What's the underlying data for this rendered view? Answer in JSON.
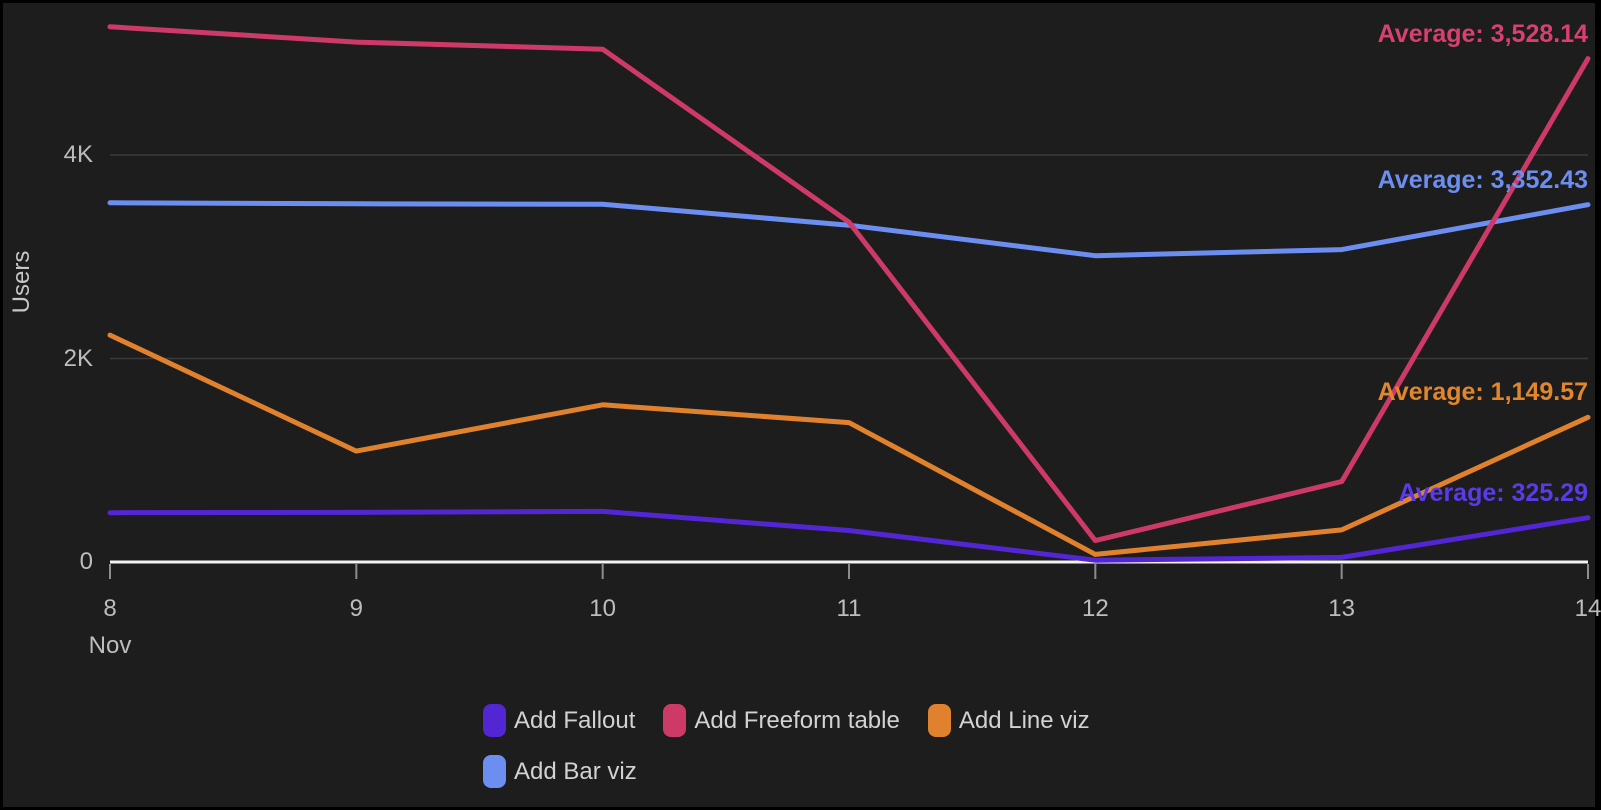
{
  "chart_data": {
    "type": "line",
    "ylabel": "Users",
    "month": "Nov",
    "x": [
      8,
      9,
      10,
      11,
      12,
      13,
      14
    ],
    "x_tick_labels": [
      "8",
      "9",
      "10",
      "11",
      "12",
      "13",
      "14"
    ],
    "y_ticks": [
      {
        "value": 0,
        "label": "0"
      },
      {
        "value": 2000,
        "label": "2K"
      },
      {
        "value": 4000,
        "label": "4K"
      }
    ],
    "ylim": [
      0,
      5525
    ],
    "grid": "horizontal-only",
    "legend_position": "bottom",
    "background_color": "#1d1d1d",
    "axis_color": "#f2f2f2",
    "gridline_color": "#3b3b3b",
    "tick_color": "#8d8d8d",
    "axis_label_color": "#bdbdbd",
    "legend_text_color": "#d2d2d2",
    "series": [
      {
        "name": "Add Fallout",
        "color": "#5226d2",
        "average_color": "#5b3aea",
        "values": [
          485,
          487,
          497,
          310,
          18,
          45,
          435
        ],
        "average": 325.29,
        "average_label": "Average: 325.29"
      },
      {
        "name": "Add Freeform table",
        "color": "#ce3a67",
        "average_color": "#d8406f",
        "values": [
          5260,
          5110,
          5040,
          3340,
          210,
          790,
          4947
        ],
        "average": 3528.14,
        "average_label": "Average: 3,528.14"
      },
      {
        "name": "Add Line viz",
        "color": "#e0812e",
        "average_color": "#e0872e",
        "values": [
          2230,
          1090,
          1545,
          1370,
          75,
          315,
          1422
        ],
        "average": 1149.57,
        "average_label": "Average: 1,149.57"
      },
      {
        "name": "Add Bar viz",
        "color": "#6d8ef1",
        "average_color": "#6d8ef1",
        "values": [
          3530,
          3520,
          3515,
          3310,
          3010,
          3070,
          3512
        ],
        "average": 3352.43,
        "average_label": "Average: 3,352.43"
      }
    ]
  }
}
